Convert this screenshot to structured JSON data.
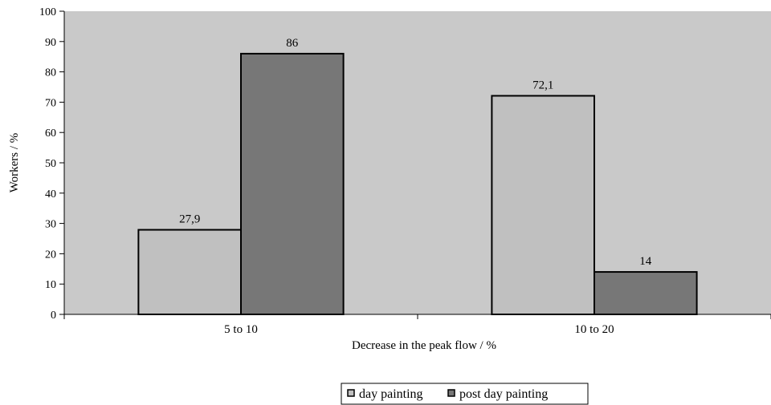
{
  "chart_data": {
    "type": "bar",
    "title": "",
    "xlabel": "Decrease in the peak flow / %",
    "ylabel": "Workers / %",
    "categories": [
      "5 to 10",
      "10 to 20"
    ],
    "series": [
      {
        "name": "day painting",
        "values": [
          27.9,
          72.1
        ],
        "labels": [
          "27,9",
          "72,1"
        ],
        "color": "#c0c0c0"
      },
      {
        "name": "post day painting",
        "values": [
          86,
          14
        ],
        "labels": [
          "86",
          "14"
        ],
        "color": "#777777"
      }
    ],
    "ylim": [
      0,
      100
    ],
    "yticks": [
      0,
      10,
      20,
      30,
      40,
      50,
      60,
      70,
      80,
      90,
      100
    ],
    "grid": false,
    "plot_background": "#c9c9c9",
    "legend_position": "bottom"
  }
}
